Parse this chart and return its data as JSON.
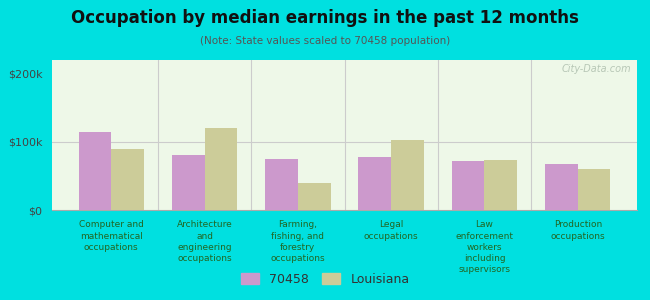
{
  "title": "Occupation by median earnings in the past 12 months",
  "subtitle": "(Note: State values scaled to 70458 population)",
  "categories": [
    "Computer and\nmathematical\noccupations",
    "Architecture\nand\nengineering\noccupations",
    "Farming,\nfishing, and\nforestry\noccupations",
    "Legal\noccupations",
    "Law\nenforcement\nworkers\nincluding\nsupervisors",
    "Production\noccupations"
  ],
  "values_70458": [
    115000,
    80000,
    75000,
    78000,
    72000,
    68000
  ],
  "values_louisiana": [
    90000,
    120000,
    40000,
    103000,
    73000,
    60000
  ],
  "color_70458": "#cc99cc",
  "color_louisiana": "#cccc99",
  "legend_labels": [
    "70458",
    "Louisiana"
  ],
  "yticks": [
    0,
    100000,
    200000
  ],
  "ytick_labels": [
    "$0",
    "$100k",
    "$200k"
  ],
  "ylim": [
    0,
    220000
  ],
  "outer_bg": "#00e0e0",
  "plot_bg": "#eef8e8",
  "watermark": "City-Data.com",
  "bar_width": 0.35
}
